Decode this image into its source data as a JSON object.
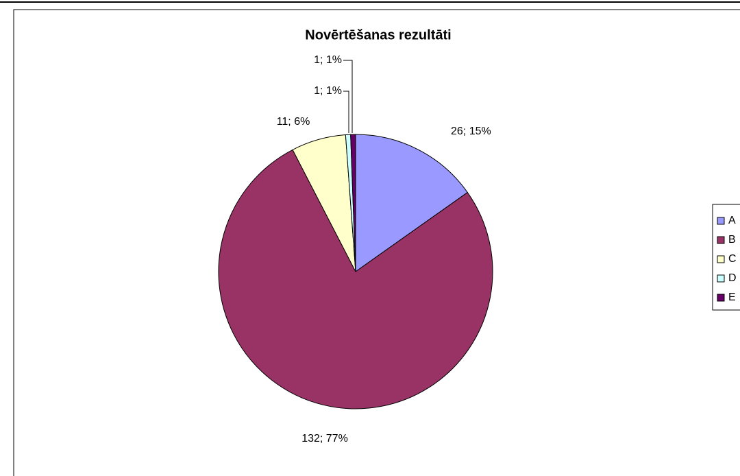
{
  "chart_data": {
    "type": "pie",
    "title": "Novērtēšanas rezultāti",
    "categories": [
      "A",
      "B",
      "C",
      "D",
      "E"
    ],
    "values": [
      26,
      132,
      11,
      1,
      1
    ],
    "value_labels": [
      "26; 15%",
      "132; 77%",
      "11; 6%",
      "1; 1%",
      "1; 1%"
    ],
    "colors": [
      "#9999ff",
      "#993366",
      "#ffffcc",
      "#ccffff",
      "#660066"
    ],
    "legend": "right"
  }
}
